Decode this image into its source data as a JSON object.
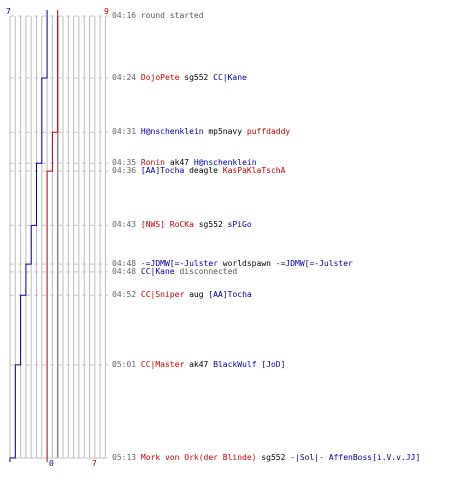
{
  "colors": {
    "team_red": "#c80000",
    "team_blue": "#0000a8",
    "time": "#666666",
    "plain": "#000000",
    "grid": "#bbbbbb",
    "center": "#888888",
    "dash": "#c8c8c8"
  },
  "chart_data": {
    "type": "line",
    "score_labels": {
      "blue_start": "7",
      "red_start": "9",
      "blue_end": "0",
      "red_end": "7"
    },
    "ylim_minutes": [
      16,
      73
    ],
    "series": [
      {
        "points": [
          [
            16,
            7
          ],
          [
            24,
            6
          ],
          [
            35,
            5
          ],
          [
            36,
            5
          ],
          [
            43,
            4
          ],
          [
            48,
            3
          ],
          [
            52,
            2
          ],
          [
            61,
            1
          ],
          [
            73,
            0
          ]
        ]
      },
      {
        "points": [
          [
            16,
            9
          ],
          [
            31,
            8
          ],
          [
            36,
            7
          ],
          [
            73,
            7
          ]
        ]
      }
    ]
  },
  "events": [
    {
      "minute": 16,
      "time": "04:16",
      "parts": [
        {
          "text": "round started",
          "style": "gray"
        }
      ]
    },
    {
      "minute": 24,
      "time": "04:24",
      "parts": [
        {
          "text": "DojoPete",
          "style": "red"
        },
        {
          "text": " sg552 ",
          "style": "plain"
        },
        {
          "text": "CC|Kane",
          "style": "blue"
        }
      ]
    },
    {
      "minute": 31,
      "time": "04:31",
      "parts": [
        {
          "text": "H@nschenklein",
          "style": "blue"
        },
        {
          "text": " mp5navy ",
          "style": "plain"
        },
        {
          "text": "puffdaddy",
          "style": "red"
        }
      ]
    },
    {
      "minute": 35,
      "time": "04:35",
      "parts": [
        {
          "text": "Ronin",
          "style": "red"
        },
        {
          "text": " ak47 ",
          "style": "plain"
        },
        {
          "text": "H@nschenklein",
          "style": "blue"
        }
      ]
    },
    {
      "minute": 36,
      "time": "04:36",
      "parts": [
        {
          "text": "[AA]Tocha",
          "style": "blue"
        },
        {
          "text": " deagle ",
          "style": "plain"
        },
        {
          "text": "KasPaKlaTschA",
          "style": "red"
        }
      ]
    },
    {
      "minute": 43,
      "time": "04:43",
      "parts": [
        {
          "text": "[NWS] RoCKa",
          "style": "red"
        },
        {
          "text": " sg552 ",
          "style": "plain"
        },
        {
          "text": "sPiGo",
          "style": "blue"
        }
      ]
    },
    {
      "minute": 48,
      "time": "04:48",
      "parts": [
        {
          "text": "-=JDMW[=-Julster",
          "style": "blue"
        },
        {
          "text": " worldspawn ",
          "style": "plain"
        },
        {
          "text": "-=JDMW[=-Julster",
          "style": "blue"
        }
      ]
    },
    {
      "minute": 49,
      "time": "04:48",
      "parts": [
        {
          "text": "CC|Kane",
          "style": "blue"
        },
        {
          "text": " disconnected",
          "style": "gray"
        }
      ]
    },
    {
      "minute": 52,
      "time": "04:52",
      "parts": [
        {
          "text": "CC|Sniper",
          "style": "red"
        },
        {
          "text": " aug ",
          "style": "plain"
        },
        {
          "text": "[AA]Tocha",
          "style": "blue"
        }
      ]
    },
    {
      "minute": 61,
      "time": "05:01",
      "parts": [
        {
          "text": "CC|Master",
          "style": "red"
        },
        {
          "text": " ak47 ",
          "style": "plain"
        },
        {
          "text": "BlackWulf [JoD]",
          "style": "blue"
        }
      ]
    },
    {
      "minute": 73,
      "time": "05:13",
      "parts": [
        {
          "text": "Mork von Ork(der Blinde)",
          "style": "red"
        },
        {
          "text": " sg552 ",
          "style": "plain"
        },
        {
          "text": "-|Sol|- AffenBoss[i.V.v.JJ]",
          "style": "blue"
        }
      ]
    }
  ]
}
